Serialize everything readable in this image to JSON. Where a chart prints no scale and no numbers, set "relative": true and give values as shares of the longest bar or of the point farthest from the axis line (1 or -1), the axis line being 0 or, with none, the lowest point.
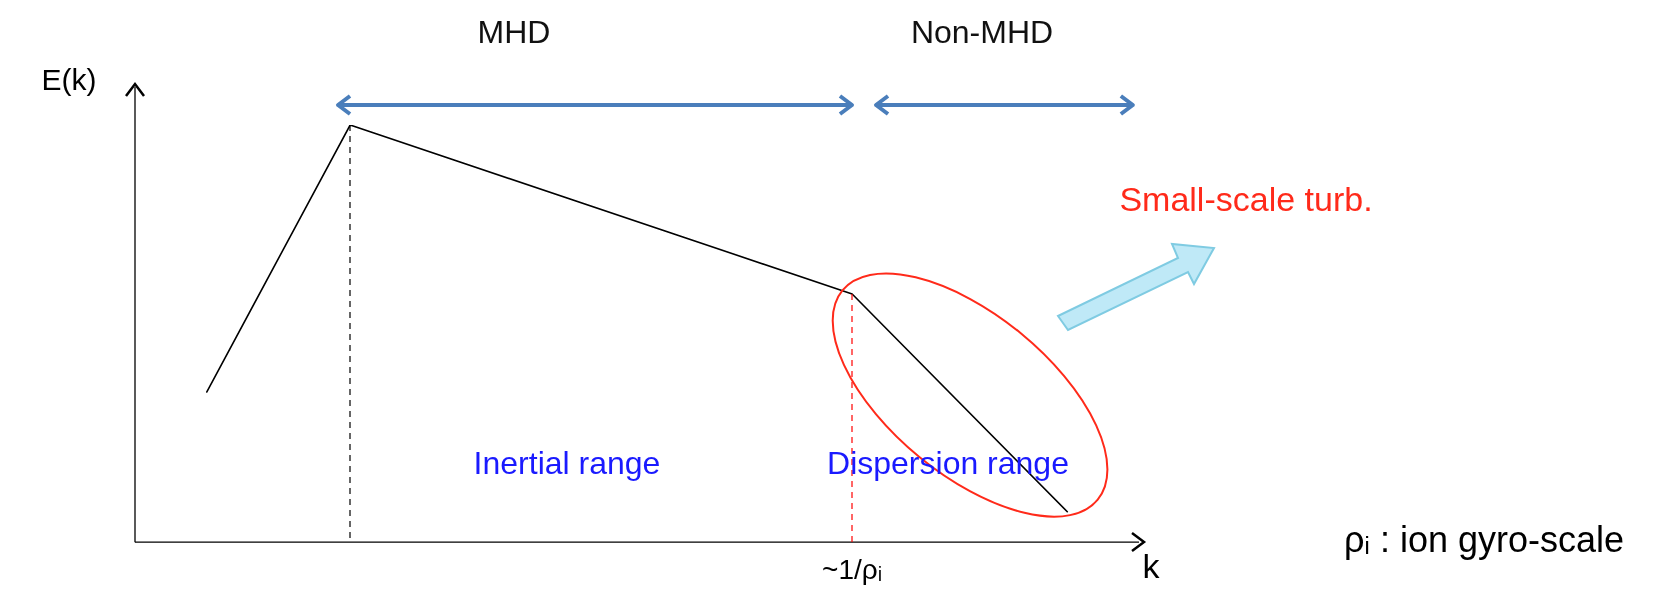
{
  "chart_data": {
    "type": "line",
    "relative": true,
    "xlabel": "k",
    "ylabel": "E(k)",
    "categories": [
      null,
      null,
      null,
      null,
      null,
      null,
      null,
      null,
      null,
      null,
      null,
      null,
      null,
      null,
      null
    ],
    "series": [
      {
        "color": "#000000",
        "values": [
          null,
          0.36,
          null,
          1,
          null,
          null,
          null,
          null,
          null,
          null,
          0.595,
          null,
          null,
          0.073,
          null
        ]
      }
    ],
    "legend": false,
    "marker": "none",
    "line_style": "solid",
    "annotations": [
      "MHD",
      "Non-MHD",
      "Inertial range",
      "Dispersion range",
      "~1/ρᵢ",
      "Small-scale turb.",
      "ρᵢ : ion gyro-scale"
    ]
  }
}
